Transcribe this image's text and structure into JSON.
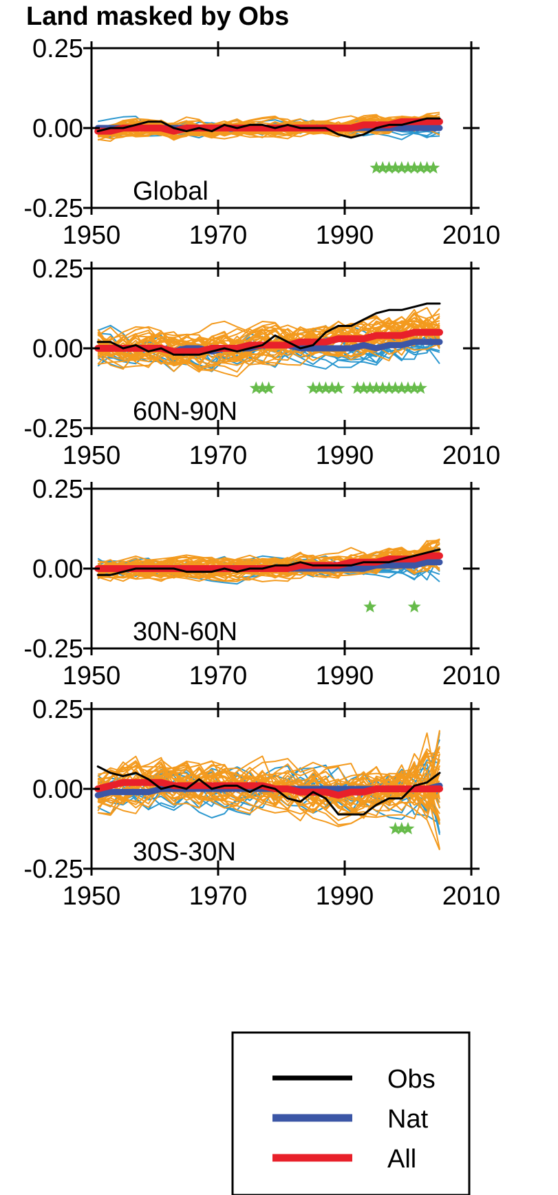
{
  "figure": {
    "title": "Land masked by Obs"
  },
  "colors": {
    "obs": "#000000",
    "nat": "#3b56a6",
    "all": "#e8202a",
    "ensemble_all": "#f39a1e",
    "ensemble_nat": "#2a97cf",
    "star": "#66bb4a"
  },
  "legend": {
    "items": [
      {
        "key": "obs",
        "label": "Obs"
      },
      {
        "key": "nat",
        "label": "Nat"
      },
      {
        "key": "all",
        "label": "All"
      }
    ]
  },
  "chart_data": [
    {
      "type": "line",
      "panel_label": "Global",
      "xlim": [
        1950,
        2010
      ],
      "ylim": [
        -0.25,
        0.25
      ],
      "xticks": [
        1950,
        1970,
        1990,
        2010
      ],
      "yticks": [
        "0.25",
        "0.00",
        "-0.25"
      ],
      "x": [
        1951,
        1953,
        1955,
        1957,
        1959,
        1961,
        1963,
        1965,
        1967,
        1969,
        1971,
        1973,
        1975,
        1977,
        1979,
        1981,
        1983,
        1985,
        1987,
        1989,
        1991,
        1993,
        1995,
        1997,
        1999,
        2001,
        2003,
        2005
      ],
      "series": [
        {
          "name": "Obs",
          "values": [
            -0.01,
            0.0,
            0.0,
            0.01,
            0.02,
            0.02,
            0.0,
            -0.01,
            0.0,
            -0.01,
            0.01,
            0.0,
            0.01,
            0.01,
            0.0,
            0.01,
            0.0,
            0.0,
            0.0,
            -0.02,
            -0.03,
            -0.02,
            0.0,
            0.01,
            0.01,
            0.02,
            0.03,
            0.03
          ]
        },
        {
          "name": "Nat",
          "values": [
            0.0,
            0.0,
            0.0,
            0.0,
            0.0,
            0.0,
            0.0,
            0.0,
            0.0,
            0.0,
            0.0,
            0.0,
            0.0,
            0.0,
            0.0,
            0.0,
            0.0,
            0.0,
            0.0,
            0.0,
            0.0,
            0.0,
            0.0,
            0.0,
            0.0,
            0.0,
            0.0,
            0.0
          ]
        },
        {
          "name": "All",
          "values": [
            -0.01,
            -0.01,
            0.0,
            0.0,
            0.0,
            0.0,
            -0.01,
            0.0,
            0.0,
            0.0,
            0.0,
            0.0,
            0.0,
            0.0,
            0.0,
            0.0,
            0.0,
            0.0,
            0.0,
            0.0,
            0.0,
            0.01,
            0.01,
            0.01,
            0.02,
            0.02,
            0.02,
            0.02
          ]
        }
      ],
      "significant_years": [
        1995,
        1996,
        1997,
        1998,
        1999,
        2000,
        2001,
        2002,
        2003,
        2004
      ],
      "star_y": -0.125
    },
    {
      "type": "line",
      "panel_label": "60N-90N",
      "xlim": [
        1950,
        2010
      ],
      "ylim": [
        -0.25,
        0.25
      ],
      "xticks": [
        1950,
        1970,
        1990,
        2010
      ],
      "yticks": [
        "0.25",
        "0.00",
        "-0.25"
      ],
      "x": [
        1951,
        1953,
        1955,
        1957,
        1959,
        1961,
        1963,
        1965,
        1967,
        1969,
        1971,
        1973,
        1975,
        1977,
        1979,
        1981,
        1983,
        1985,
        1987,
        1989,
        1991,
        1993,
        1995,
        1997,
        1999,
        2001,
        2003,
        2005
      ],
      "series": [
        {
          "name": "Obs",
          "values": [
            0.02,
            0.02,
            0.0,
            0.01,
            -0.01,
            0.0,
            -0.02,
            -0.02,
            -0.02,
            -0.01,
            0.0,
            -0.01,
            0.0,
            0.01,
            0.04,
            0.02,
            0.0,
            0.01,
            0.05,
            0.07,
            0.07,
            0.09,
            0.11,
            0.12,
            0.12,
            0.13,
            0.14,
            0.14
          ]
        },
        {
          "name": "Nat",
          "values": [
            0.0,
            0.0,
            0.0,
            0.0,
            0.0,
            0.0,
            -0.01,
            0.0,
            0.0,
            -0.01,
            0.0,
            0.0,
            0.0,
            0.01,
            0.01,
            0.01,
            0.0,
            0.0,
            0.0,
            0.0,
            0.0,
            0.01,
            0.0,
            0.01,
            0.01,
            0.02,
            0.02,
            0.02
          ]
        },
        {
          "name": "All",
          "values": [
            0.0,
            0.0,
            0.0,
            0.0,
            0.0,
            0.0,
            -0.01,
            -0.01,
            -0.01,
            0.0,
            0.0,
            0.0,
            0.01,
            0.01,
            0.01,
            0.01,
            0.02,
            0.02,
            0.02,
            0.03,
            0.03,
            0.03,
            0.04,
            0.04,
            0.04,
            0.05,
            0.05,
            0.05
          ]
        }
      ],
      "significant_years": [
        1976,
        1977,
        1978,
        1985,
        1986,
        1987,
        1988,
        1989,
        1992,
        1993,
        1994,
        1995,
        1996,
        1997,
        1998,
        1999,
        2000,
        2001,
        2002
      ],
      "star_y": -0.125
    },
    {
      "type": "line",
      "panel_label": "30N-60N",
      "xlim": [
        1950,
        2010
      ],
      "ylim": [
        -0.25,
        0.25
      ],
      "xticks": [
        1950,
        1970,
        1990,
        2010
      ],
      "yticks": [
        "0.25",
        "0.00",
        "-0.25"
      ],
      "x": [
        1951,
        1953,
        1955,
        1957,
        1959,
        1961,
        1963,
        1965,
        1967,
        1969,
        1971,
        1973,
        1975,
        1977,
        1979,
        1981,
        1983,
        1985,
        1987,
        1989,
        1991,
        1993,
        1995,
        1997,
        1999,
        2001,
        2003,
        2005
      ],
      "series": [
        {
          "name": "Obs",
          "values": [
            -0.02,
            -0.02,
            -0.01,
            0.0,
            0.0,
            0.0,
            0.0,
            -0.01,
            -0.01,
            -0.01,
            0.0,
            -0.01,
            0.0,
            0.0,
            0.01,
            0.01,
            0.02,
            0.01,
            0.01,
            0.01,
            0.01,
            0.02,
            0.02,
            0.02,
            0.03,
            0.04,
            0.05,
            0.06
          ]
        },
        {
          "name": "Nat",
          "values": [
            0.0,
            0.0,
            0.0,
            0.0,
            0.0,
            0.0,
            0.0,
            0.0,
            0.0,
            0.0,
            0.0,
            0.0,
            0.0,
            0.0,
            0.0,
            0.0,
            0.0,
            0.0,
            0.0,
            0.0,
            0.0,
            0.0,
            0.01,
            0.01,
            0.01,
            0.01,
            0.02,
            0.02
          ]
        },
        {
          "name": "All",
          "values": [
            0.0,
            0.0,
            0.0,
            0.0,
            0.0,
            0.0,
            0.0,
            0.0,
            0.0,
            0.0,
            0.0,
            0.0,
            0.0,
            0.0,
            0.0,
            0.0,
            0.01,
            0.01,
            0.01,
            0.01,
            0.02,
            0.02,
            0.02,
            0.03,
            0.03,
            0.03,
            0.04,
            0.04
          ]
        }
      ],
      "significant_years": [
        1994,
        2001
      ],
      "star_y": -0.12
    },
    {
      "type": "line",
      "panel_label": "30S-30N",
      "xlim": [
        1950,
        2010
      ],
      "ylim": [
        -0.25,
        0.25
      ],
      "xticks": [
        1950,
        1970,
        1990,
        2010
      ],
      "yticks": [
        "0.25",
        "0.00",
        "-0.25"
      ],
      "x": [
        1951,
        1953,
        1955,
        1957,
        1959,
        1961,
        1963,
        1965,
        1967,
        1969,
        1971,
        1973,
        1975,
        1977,
        1979,
        1981,
        1983,
        1985,
        1987,
        1989,
        1991,
        1993,
        1995,
        1997,
        1999,
        2001,
        2003,
        2005
      ],
      "series": [
        {
          "name": "Obs",
          "values": [
            0.07,
            0.05,
            0.04,
            0.05,
            0.03,
            0.0,
            0.01,
            0.0,
            0.03,
            0.0,
            0.01,
            0.01,
            -0.01,
            0.01,
            0.0,
            -0.03,
            -0.04,
            -0.01,
            -0.03,
            -0.08,
            -0.08,
            -0.08,
            -0.05,
            -0.03,
            -0.03,
            0.01,
            0.02,
            0.05
          ]
        },
        {
          "name": "Nat",
          "values": [
            -0.02,
            -0.01,
            -0.01,
            -0.01,
            -0.01,
            0.0,
            0.0,
            0.0,
            0.0,
            0.0,
            0.0,
            0.0,
            0.0,
            0.0,
            0.0,
            0.0,
            0.0,
            0.0,
            0.0,
            0.0,
            0.0,
            0.0,
            0.0,
            0.0,
            0.0,
            0.0,
            0.0,
            0.01
          ]
        },
        {
          "name": "All",
          "values": [
            0.0,
            0.01,
            0.02,
            0.02,
            0.02,
            0.02,
            0.01,
            0.01,
            0.01,
            0.01,
            0.01,
            0.01,
            0.01,
            0.01,
            0.0,
            0.0,
            -0.01,
            -0.01,
            -0.01,
            -0.02,
            -0.01,
            -0.01,
            0.0,
            0.0,
            0.0,
            0.0,
            0.0,
            0.0
          ]
        }
      ],
      "significant_years": [
        1998,
        1999,
        2000
      ],
      "star_y": -0.125
    }
  ]
}
